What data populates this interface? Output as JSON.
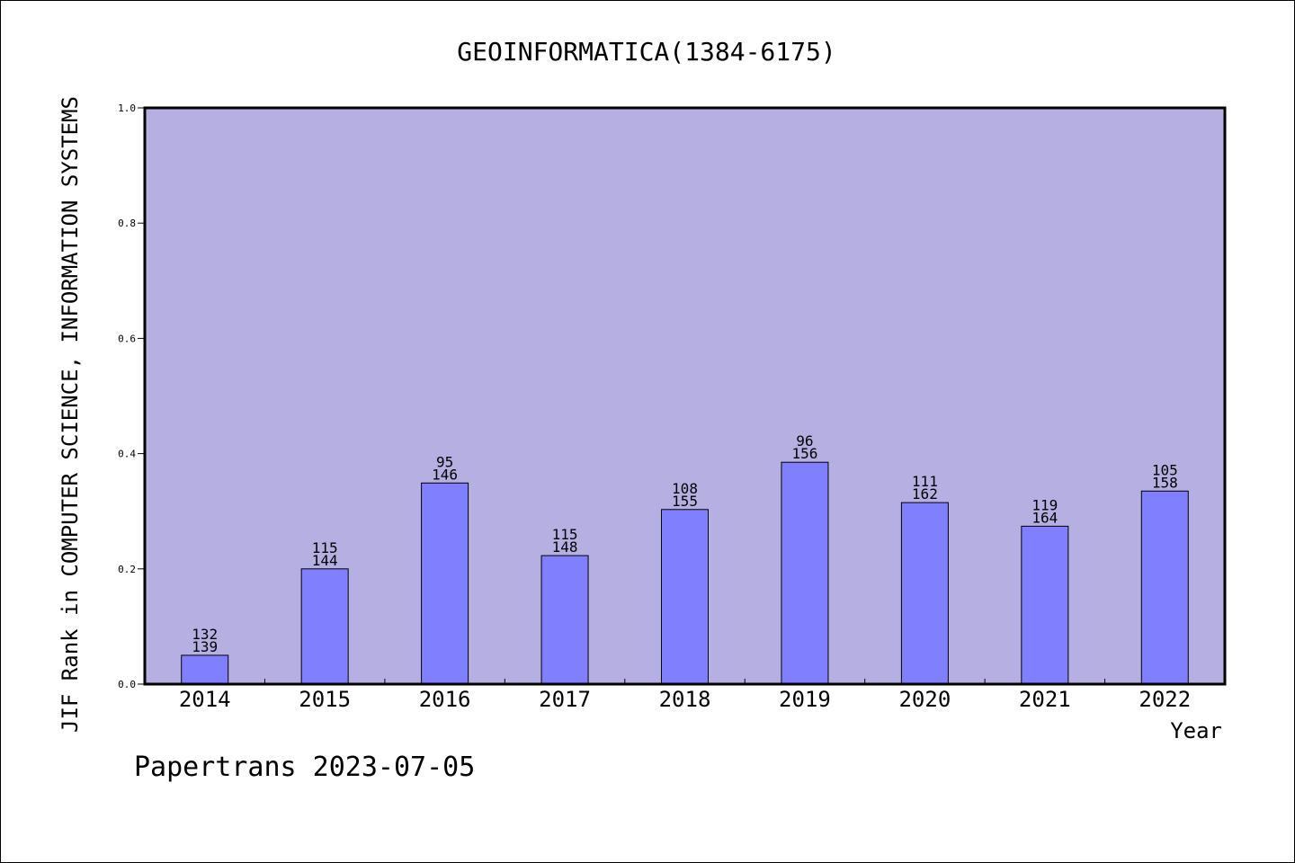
{
  "chart_data": {
    "type": "bar",
    "title": "GEOINFORMATICA(1384-6175)",
    "xlabel": "Year",
    "ylabel": "JIF Rank in COMPUTER SCIENCE, INFORMATION SYSTEMS",
    "footer": "Papertrans 2023-07-05",
    "categories": [
      "2014",
      "2015",
      "2016",
      "2017",
      "2018",
      "2019",
      "2020",
      "2021",
      "2022"
    ],
    "values": [
      0.05,
      0.2,
      0.349,
      0.223,
      0.303,
      0.385,
      0.315,
      0.274,
      0.335
    ],
    "rank_labels": [
      "132",
      "115",
      "95",
      "115",
      "108",
      "96",
      "111",
      "119",
      "105"
    ],
    "total_labels": [
      "139",
      "144",
      "146",
      "148",
      "155",
      "156",
      "162",
      "164",
      "158"
    ],
    "yticks": [
      "0.0",
      "0.2",
      "0.4",
      "0.6",
      "0.8",
      "1.0"
    ],
    "ylim": [
      0,
      1
    ],
    "grid": false,
    "legend": "none",
    "colors": {
      "plot_background": "#b5afe2",
      "bar_fill": "#8080ff",
      "bar_stroke": "#000000",
      "axis": "#000000"
    }
  }
}
